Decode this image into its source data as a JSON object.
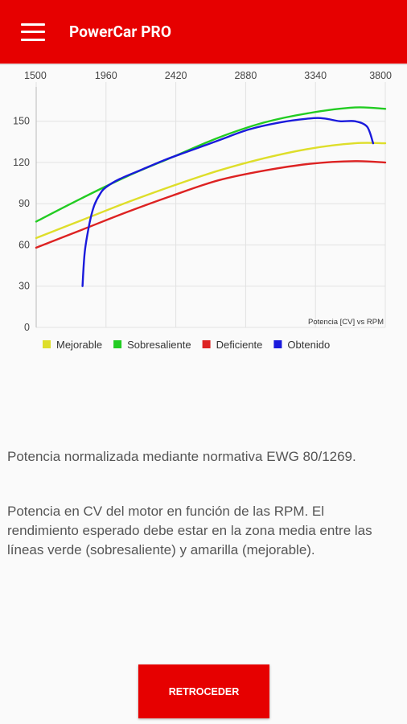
{
  "appbar": {
    "title": "PowerCar PRO",
    "menu_icon": "hamburger-menu-icon",
    "color": "#e60000"
  },
  "chart_data": {
    "type": "line",
    "title": "",
    "description_label": "Potencia [CV] vs RPM",
    "xlabel": "",
    "ylabel": "",
    "x_ticks": [
      "1500",
      "1960",
      "2420",
      "2880",
      "3340",
      "3800"
    ],
    "y_ticks": [
      "0",
      "30",
      "60",
      "90",
      "120",
      "150"
    ],
    "xlim": [
      1500,
      3800
    ],
    "ylim": [
      0,
      175
    ],
    "grid": true,
    "legend_position": "bottom-left",
    "series": [
      {
        "name": "Mejorable",
        "color": "#dede2a",
        "x": [
          1500,
          1800,
          2100,
          2400,
          2700,
          3000,
          3300,
          3600,
          3800
        ],
        "y": [
          65,
          78,
          91,
          103,
          114,
          123,
          130,
          134,
          134
        ]
      },
      {
        "name": "Sobresaliente",
        "color": "#22cc22",
        "x": [
          1500,
          1800,
          2100,
          2400,
          2700,
          3000,
          3300,
          3600,
          3800
        ],
        "y": [
          77,
          94,
          110,
          124,
          138,
          149,
          156,
          160,
          159
        ]
      },
      {
        "name": "Deficiente",
        "color": "#dd2222",
        "x": [
          1500,
          1800,
          2100,
          2400,
          2700,
          3000,
          3300,
          3600,
          3800
        ],
        "y": [
          58,
          71,
          84,
          96,
          107,
          114,
          119,
          121,
          120
        ]
      },
      {
        "name": "Obtenido",
        "color": "#1a1adc",
        "x": [
          1805,
          1820,
          1850,
          1880,
          1920,
          1960,
          2050,
          2200,
          2350,
          2500,
          2700,
          2900,
          3100,
          3300,
          3400,
          3500,
          3600,
          3680,
          3720
        ],
        "y": [
          30,
          55,
          75,
          88,
          97,
          102,
          108,
          115,
          122,
          128,
          136,
          144,
          149,
          152,
          152,
          150,
          150,
          146,
          134
        ]
      }
    ]
  },
  "description": {
    "paragraph1": "Potencia normalizada mediante normativa EWG 80/1269.",
    "paragraph2": "Potencia en CV del motor en función de las RPM. El rendimiento esperado debe estar en la zona media entre las líneas verde (sobresaliente) y amarilla (mejorable)."
  },
  "back_button": {
    "label": "RETROCEDER"
  }
}
